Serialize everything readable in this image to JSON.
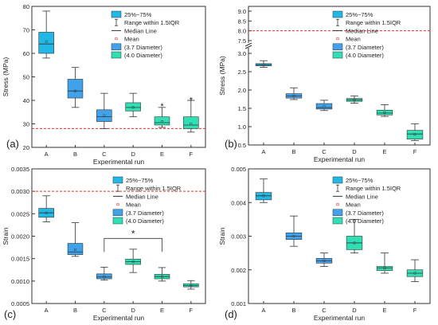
{
  "figure": {
    "legend_entries": [
      "25%~75%",
      "Range within 1.5IQR",
      "Median Line",
      "Mean",
      "(3.7 Diameter)",
      "(4.0 Diameter)"
    ]
  },
  "colors": {
    "light_blue": "#22b8e6",
    "mid_blue": "#3fa2ea",
    "teal": "#2ee0b4",
    "red_dash": "#e0332a",
    "axis": "#333333"
  },
  "chart_data": [
    {
      "type": "box",
      "panel_label": "(a)",
      "xlabel": "Experimental run",
      "ylabel": "Stress (MPa)",
      "categories": [
        "A",
        "B",
        "C",
        "D",
        "E",
        "F"
      ],
      "ylim": [
        20,
        80
      ],
      "yticks": [
        "20",
        "30",
        "40",
        "50",
        "60",
        "70",
        "80"
      ],
      "reference_line": 28,
      "boxes": [
        {
          "q1": 60,
          "median": 64,
          "q3": 69,
          "whisker_low": 58,
          "whisker_high": 78,
          "mean": 65,
          "outliers": []
        },
        {
          "q1": 41,
          "median": 44,
          "q3": 49,
          "whisker_low": 37,
          "whisker_high": 54,
          "mean": 44,
          "outliers": []
        },
        {
          "q1": 31,
          "median": 33,
          "q3": 36,
          "whisker_low": 28,
          "whisker_high": 43,
          "mean": 33.5,
          "outliers": []
        },
        {
          "q1": 35.5,
          "median": 37,
          "q3": 39,
          "whisker_low": 33,
          "whisker_high": 43,
          "mean": 37,
          "outliers": []
        },
        {
          "q1": 29.5,
          "median": 30.5,
          "q3": 33,
          "whisker_low": 28.5,
          "whisker_high": 37,
          "mean": 31,
          "outliers": [
            38
          ]
        },
        {
          "q1": 28,
          "median": 29.5,
          "q3": 33,
          "whisker_low": 26.5,
          "whisker_high": 40,
          "mean": 30,
          "outliers": [
            40.5
          ]
        }
      ]
    },
    {
      "type": "box",
      "panel_label": "(b)",
      "xlabel": "Experimental run",
      "ylabel": "Stress (MPa)",
      "categories": [
        "A",
        "B",
        "C",
        "D",
        "E",
        "F"
      ],
      "ylim": [
        0.5,
        3.0
      ],
      "yticks": [
        "0.5",
        "1.0",
        "1.5",
        "2.0",
        "2.5",
        "3.0"
      ],
      "upper_break_ticks": [
        "7.5",
        "8.0",
        "8.5",
        "9.0"
      ],
      "reference_line": 8.0,
      "boxes": [
        {
          "q1": 2.66,
          "median": 2.69,
          "q3": 2.72,
          "whisker_low": 2.62,
          "whisker_high": 2.8,
          "mean": 2.69,
          "outliers": []
        },
        {
          "q1": 1.78,
          "median": 1.84,
          "q3": 1.9,
          "whisker_low": 1.74,
          "whisker_high": 2.06,
          "mean": 1.84,
          "outliers": []
        },
        {
          "q1": 1.48,
          "median": 1.52,
          "q3": 1.63,
          "whisker_low": 1.44,
          "whisker_high": 1.72,
          "mean": 1.55,
          "outliers": []
        },
        {
          "q1": 1.69,
          "median": 1.73,
          "q3": 1.77,
          "whisker_low": 1.64,
          "whisker_high": 1.84,
          "mean": 1.73,
          "outliers": []
        },
        {
          "q1": 1.32,
          "median": 1.37,
          "q3": 1.45,
          "whisker_low": 1.28,
          "whisker_high": 1.6,
          "mean": 1.38,
          "outliers": []
        },
        {
          "q1": 0.66,
          "median": 0.8,
          "q3": 0.9,
          "whisker_low": 0.62,
          "whisker_high": 1.08,
          "mean": 0.79,
          "outliers": []
        }
      ]
    },
    {
      "type": "box",
      "panel_label": "(c)",
      "xlabel": "Experimental run",
      "ylabel": "Strain",
      "categories": [
        "A",
        "B",
        "C",
        "D",
        "E",
        "F"
      ],
      "ylim": [
        0.0005,
        0.0035
      ],
      "yticks": [
        "0.0005",
        "0.0010",
        "0.0015",
        "0.0020",
        "0.0025",
        "0.0030",
        "0.0035"
      ],
      "reference_line": 0.003,
      "significance": {
        "from": "C",
        "to": "E",
        "label": "*"
      },
      "boxes": [
        {
          "q1": 0.00242,
          "median": 0.00252,
          "q3": 0.00262,
          "whisker_low": 0.00232,
          "whisker_high": 0.0029,
          "mean": 0.00252,
          "outliers": []
        },
        {
          "q1": 0.00159,
          "median": 0.00165,
          "q3": 0.00184,
          "whisker_low": 0.00155,
          "whisker_high": 0.0023,
          "mean": 0.0017,
          "outliers": []
        },
        {
          "q1": 0.00105,
          "median": 0.00109,
          "q3": 0.00116,
          "whisker_low": 0.00102,
          "whisker_high": 0.00131,
          "mean": 0.0011,
          "outliers": []
        },
        {
          "q1": 0.00137,
          "median": 0.00143,
          "q3": 0.00149,
          "whisker_low": 0.00119,
          "whisker_high": 0.00171,
          "mean": 0.00143,
          "outliers": []
        },
        {
          "q1": 0.00105,
          "median": 0.0011,
          "q3": 0.00115,
          "whisker_low": 0.001,
          "whisker_high": 0.0013,
          "mean": 0.0011,
          "outliers": []
        },
        {
          "q1": 0.00087,
          "median": 0.0009,
          "q3": 0.00094,
          "whisker_low": 0.00082,
          "whisker_high": 0.00101,
          "mean": 0.0009,
          "outliers": []
        }
      ]
    },
    {
      "type": "box",
      "panel_label": "(d)",
      "xlabel": "Experimental run",
      "ylabel": "Strain",
      "categories": [
        "A",
        "B",
        "C",
        "D",
        "E",
        "F"
      ],
      "ylim": [
        0.001,
        0.005
      ],
      "yticks": [
        "0.001",
        "0.002",
        "0.003",
        "0.004",
        "0.005"
      ],
      "boxes": [
        {
          "q1": 0.00408,
          "median": 0.0042,
          "q3": 0.0043,
          "whisker_low": 0.004,
          "whisker_high": 0.0047,
          "mean": 0.0042,
          "outliers": []
        },
        {
          "q1": 0.0029,
          "median": 0.003,
          "q3": 0.0031,
          "whisker_low": 0.0027,
          "whisker_high": 0.0036,
          "mean": 0.003,
          "outliers": []
        },
        {
          "q1": 0.0022,
          "median": 0.00227,
          "q3": 0.00234,
          "whisker_low": 0.0021,
          "whisker_high": 0.0025,
          "mean": 0.00227,
          "outliers": []
        },
        {
          "q1": 0.0026,
          "median": 0.0028,
          "q3": 0.003,
          "whisker_low": 0.0025,
          "whisker_high": 0.0035,
          "mean": 0.0028,
          "outliers": []
        },
        {
          "q1": 0.00198,
          "median": 0.00206,
          "q3": 0.0021,
          "whisker_low": 0.0019,
          "whisker_high": 0.0025,
          "mean": 0.00205,
          "outliers": []
        },
        {
          "q1": 0.0018,
          "median": 0.0019,
          "q3": 0.002,
          "whisker_low": 0.00165,
          "whisker_high": 0.0023,
          "mean": 0.0019,
          "outliers": []
        }
      ]
    }
  ]
}
